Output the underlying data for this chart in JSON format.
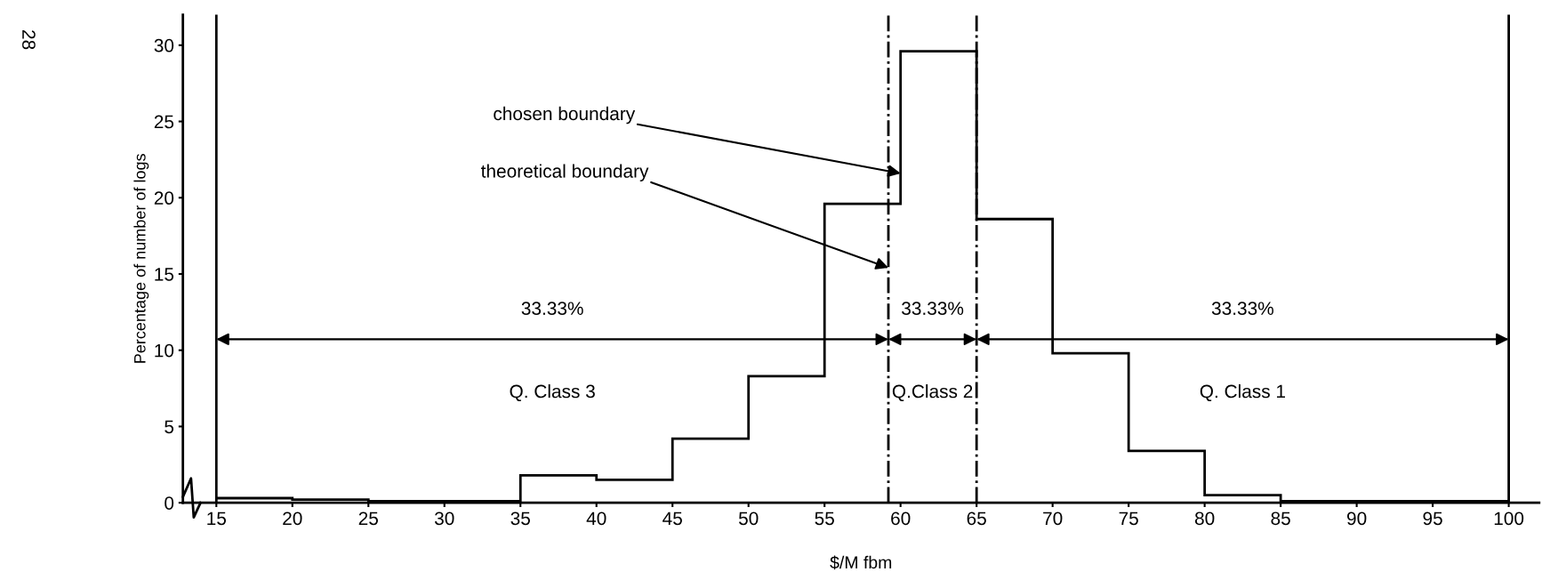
{
  "chart_data": {
    "type": "histogram",
    "xlabel": "$/M fbm",
    "ylabel": "Percentage of number of logs",
    "bins": [
      15,
      20,
      25,
      30,
      35,
      40,
      45,
      50,
      55,
      60,
      65,
      70,
      75,
      80,
      85,
      90,
      95,
      100
    ],
    "values": [
      0.3,
      0.2,
      0.1,
      0.1,
      1.8,
      1.5,
      4.2,
      8.3,
      19.6,
      29.6,
      18.6,
      9.8,
      3.4,
      0.5,
      0.1,
      0.1,
      0.1
    ],
    "color": "#000000",
    "xlim": [
      12.8,
      102
    ],
    "ylim": [
      0,
      32
    ],
    "xticks": [
      15,
      20,
      25,
      30,
      35,
      40,
      45,
      50,
      55,
      60,
      65,
      70,
      75,
      80,
      85,
      90,
      95,
      100
    ],
    "yticks": [
      0,
      5,
      10,
      15,
      20,
      25,
      30
    ],
    "grid": false,
    "ref_lines": [
      {
        "axis": "x",
        "value": 15,
        "label": null,
        "color": "#000000",
        "line_style": "solid"
      },
      {
        "axis": "x",
        "value": 59.2,
        "label": null,
        "color": "#000000",
        "line_style": "dashdot"
      },
      {
        "axis": "x",
        "value": 65,
        "label": null,
        "color": "#000000",
        "line_style": "dashdot"
      },
      {
        "axis": "x",
        "value": 100,
        "label": null,
        "color": "#000000",
        "line_style": "solid"
      }
    ],
    "annotations": [
      {
        "text": "chosen boundary",
        "x": 60,
        "y": 21.6
      },
      {
        "text": "theoretical boundary",
        "x": 59.2,
        "y": 15.4
      },
      "33.33%",
      "33.33%",
      "33.33%",
      "Q. Class 3",
      "Q.Class 2",
      "Q. Class 1",
      "28"
    ]
  }
}
